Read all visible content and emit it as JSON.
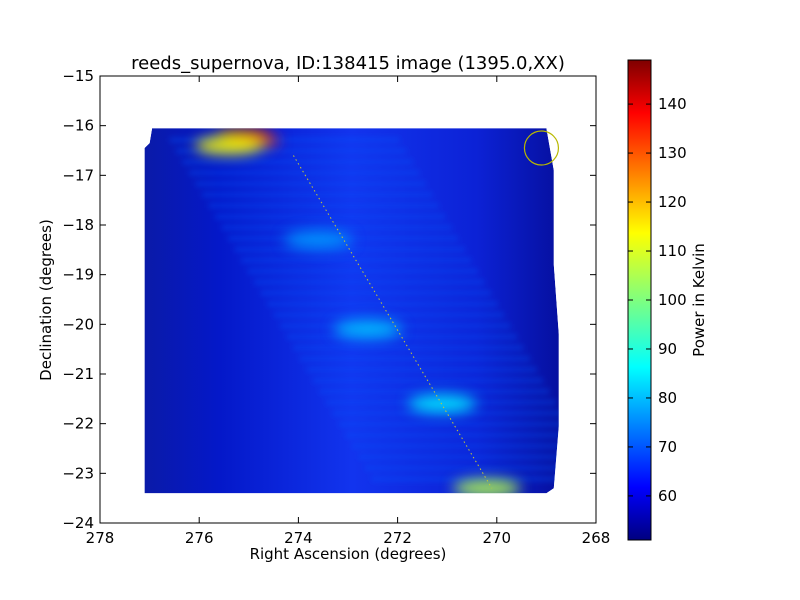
{
  "chart_data": {
    "type": "heatmap",
    "title": "reeds_supernova, ID:138415 image (1395.0,XX)",
    "xlabel": "Right Ascension (degrees)",
    "ylabel": "Declination (degrees)",
    "colorbar_label": "Power in Kelvin",
    "xlim": [
      278,
      268
    ],
    "ylim": [
      -24,
      -15
    ],
    "x_ticks": [
      "278",
      "276",
      "274",
      "272",
      "270",
      "268"
    ],
    "y_ticks": [
      "−15",
      "−16",
      "−17",
      "−18",
      "−19",
      "−20",
      "−21",
      "−22",
      "−23",
      "−24"
    ],
    "colorbar_range": [
      51,
      149
    ],
    "colorbar_ticks": [
      "60",
      "70",
      "80",
      "90",
      "100",
      "110",
      "120",
      "130",
      "140"
    ],
    "colormap": "jet",
    "grid": false,
    "coverage_polygon": [
      [
        277.1,
        -16.45
      ],
      [
        277.0,
        -16.35
      ],
      [
        276.95,
        -16.05
      ],
      [
        269.0,
        -16.05
      ],
      [
        268.85,
        -16.9
      ],
      [
        268.85,
        -18.8
      ],
      [
        268.75,
        -20.2
      ],
      [
        268.75,
        -22.05
      ],
      [
        268.85,
        -23.3
      ],
      [
        269.0,
        -23.4
      ],
      [
        277.1,
        -23.4
      ]
    ],
    "hotspots": [
      {
        "ra": 275.1,
        "dec": -16.15,
        "value": 145
      },
      {
        "ra": 274.9,
        "dec": -16.3,
        "value": 132
      },
      {
        "ra": 275.4,
        "dec": -16.4,
        "value": 112
      },
      {
        "ra": 270.2,
        "dec": -23.3,
        "value": 105
      },
      {
        "ra": 271.1,
        "dec": -21.6,
        "value": 86
      },
      {
        "ra": 272.6,
        "dec": -20.1,
        "value": 82
      },
      {
        "ra": 273.6,
        "dec": -18.3,
        "value": 78
      }
    ],
    "track": {
      "ra_start": 274.1,
      "dec_start": -16.6,
      "ra_end": 270.1,
      "dec_end": -23.3,
      "color": "#c8c832"
    },
    "marker_circle": {
      "ra": 269.1,
      "dec": -16.45,
      "color": "#b8b800"
    }
  }
}
